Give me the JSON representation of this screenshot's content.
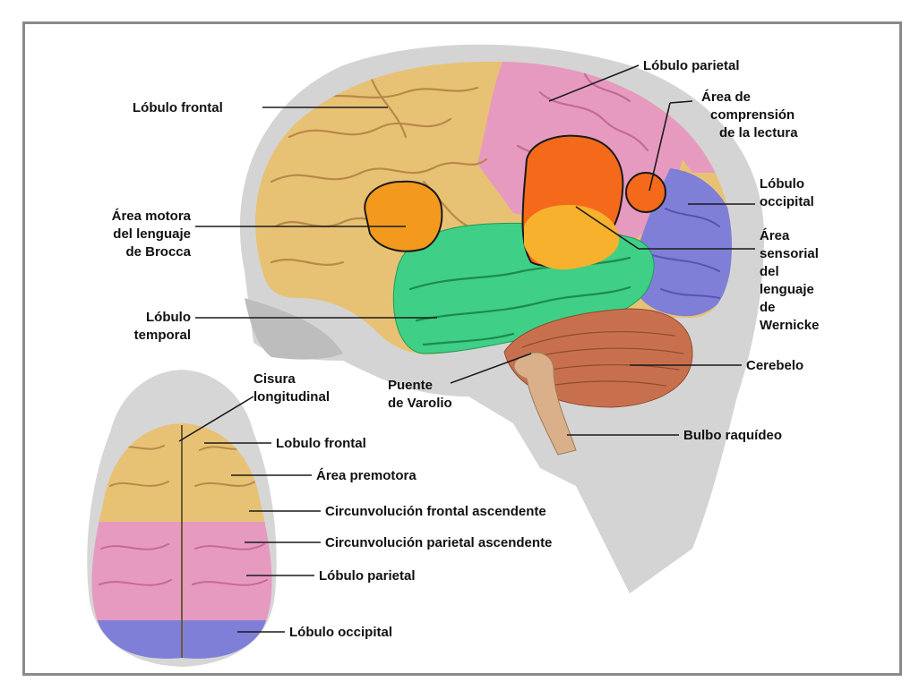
{
  "colors": {
    "frame": "#8a8a8a",
    "head_silhouette": "#cfcfcf",
    "frontal": "#e8c274",
    "parietal": "#e79ac0",
    "occipital": "#7f7fd8",
    "temporal": "#3fcf86",
    "broca": "#f39a1e",
    "wernicke": "#f8b12d",
    "reading_area": "#f56a1a",
    "cerebellum": "#c8704e",
    "brainstem": "#d9b08a",
    "text": "#111111"
  },
  "lateral_view": {
    "labels": {
      "frontal": "Lóbulo frontal",
      "broca": [
        "Área motora",
        "del lenguaje",
        "de Brocca"
      ],
      "temporal": [
        "Lóbulo",
        "temporal"
      ],
      "pons": [
        "Puente",
        "de Varolio"
      ],
      "parietal": "Lóbulo parietal",
      "reading": [
        "Área de",
        "comprensión",
        "de la lectura"
      ],
      "occipital": [
        "Lóbulo",
        "occipital"
      ],
      "wernicke": [
        "Área",
        "sensorial",
        "del",
        "lenguaje",
        "de",
        "Wernicke"
      ],
      "cerebellum": "Cerebelo",
      "medulla": "Bulbo raquídeo"
    }
  },
  "top_view": {
    "labels": {
      "fissure": [
        "Cisura",
        "longitudinal"
      ],
      "frontal": "Lobulo frontal",
      "premotor": "Área premotora",
      "ascending_frontal": "Circunvolución frontal ascendente",
      "ascending_parietal": "Circunvolución parietal ascendente",
      "parietal": "Lóbulo parietal",
      "occipital": "Lóbulo occipital"
    }
  }
}
